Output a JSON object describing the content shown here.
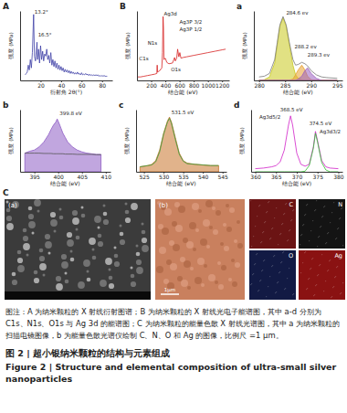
{
  "chart_data": [
    {
      "panel": "A",
      "type": "line",
      "x_label": "衍射角 2θ(°)",
      "y_label": "强度 (MPa)",
      "x": [
        5,
        6,
        7,
        8,
        9,
        10,
        11,
        12,
        13.2,
        14,
        15,
        16.5,
        17,
        18,
        19,
        20,
        21,
        22,
        23,
        24,
        25,
        26,
        27,
        28,
        29,
        30,
        31,
        32,
        33,
        34,
        35,
        36,
        37,
        38,
        39,
        40,
        41,
        42,
        43,
        44,
        45,
        46,
        47,
        48,
        49,
        50,
        51,
        52,
        53,
        54,
        55,
        56,
        57,
        58,
        59,
        60,
        61,
        62,
        63,
        64,
        65,
        66,
        67,
        68,
        69,
        70,
        71,
        72,
        73,
        74,
        75,
        76,
        77,
        78,
        79,
        80,
        81,
        82,
        83,
        84,
        85
      ],
      "xlim": [
        0,
        90
      ],
      "xticks": [
        20,
        40,
        60,
        80
      ],
      "ylim": [
        0,
        100
      ],
      "tick_labels": "x",
      "series": [
        {
          "color": "#3d3fa6",
          "values": [
            8,
            10,
            12,
            22,
            15,
            30,
            18,
            40,
            95,
            35,
            28,
            55,
            30,
            45,
            25,
            50,
            30,
            42,
            28,
            38,
            35,
            45,
            30,
            36,
            25,
            40,
            22,
            30,
            20,
            28,
            18,
            25,
            16,
            22,
            15,
            20,
            14,
            18,
            12,
            16,
            12,
            15,
            11,
            14,
            10,
            13,
            10,
            12,
            9,
            11,
            9,
            12,
            9,
            10,
            8,
            11,
            8,
            9,
            8,
            10,
            8,
            9,
            7,
            9,
            7,
            8,
            7,
            8,
            7,
            8,
            7,
            8,
            6,
            7,
            6,
            7,
            6,
            7,
            6,
            6,
            6
          ]
        }
      ],
      "annotations": [
        {
          "text": "13.2°",
          "x": 14,
          "y": 95
        },
        {
          "text": "16.5°",
          "x": 17.5,
          "y": 62
        }
      ]
    },
    {
      "panel": "B",
      "type": "line",
      "x_label": "结合能 (eV)",
      "y_label": "强度 (MPa)",
      "x": [
        0,
        50,
        100,
        150,
        200,
        250,
        280,
        285,
        290,
        320,
        350,
        360,
        368,
        374,
        380,
        400,
        420,
        450,
        500,
        531,
        540,
        560,
        573,
        590,
        604,
        620,
        650,
        700,
        800,
        900,
        1000,
        1100,
        1200,
        1250
      ],
      "xlim": [
        0,
        1300
      ],
      "xticks": [
        200,
        400,
        600,
        800,
        1000,
        1200
      ],
      "ylim": [
        0,
        100
      ],
      "tick_labels": "x",
      "series": [
        {
          "color": "#d62020",
          "values": [
            5,
            5,
            6,
            7,
            8,
            9,
            10,
            22,
            12,
            14,
            18,
            40,
            92,
            75,
            30,
            32,
            26,
            24,
            25,
            33,
            28,
            32,
            45,
            34,
            40,
            32,
            33,
            34,
            36,
            38,
            40,
            42,
            44,
            45
          ]
        }
      ],
      "annotations": [
        {
          "text": "Ag3d",
          "x": 380,
          "y": 92
        },
        {
          "text": "Ag3P 3/2",
          "x": 600,
          "y": 80
        },
        {
          "text": "Ag3P 1/2",
          "x": 600,
          "y": 70
        },
        {
          "text": "N1s",
          "x": 150,
          "y": 50
        },
        {
          "text": "C1s",
          "x": 30,
          "y": 28
        },
        {
          "text": "O1s",
          "x": 480,
          "y": 12
        }
      ]
    },
    {
      "panel": "a",
      "type": "line",
      "x_label": "结合能 (eV)",
      "y_label": "强度 (MPa)",
      "x": [
        280,
        281,
        282,
        283,
        283.5,
        284,
        284.6,
        285.2,
        285.8,
        286.5,
        287,
        287.5,
        288.2,
        288.8,
        289.3,
        290,
        291,
        292,
        293,
        295
      ],
      "xlim": [
        279,
        296
      ],
      "xticks": [
        280,
        285,
        290,
        295
      ],
      "ylim": [
        0,
        100
      ],
      "tick_labels": "x",
      "series": [
        {
          "type": "area",
          "color": "#c8c81e",
          "values": [
            0,
            1,
            5,
            25,
            52,
            78,
            90,
            78,
            52,
            22,
            8,
            3,
            1,
            0,
            0,
            0,
            0,
            0,
            0,
            0
          ]
        },
        {
          "type": "area",
          "color": "#e8a030",
          "values": [
            0,
            0,
            0,
            0,
            0,
            0,
            0,
            0,
            0,
            2,
            8,
            15,
            22,
            15,
            6,
            1,
            0,
            0,
            0,
            0
          ]
        },
        {
          "type": "area",
          "color": "#9a60c0",
          "values": [
            0,
            0,
            0,
            0,
            0,
            0,
            0,
            0,
            0,
            0,
            0,
            2,
            6,
            14,
            18,
            10,
            3,
            0,
            0,
            0
          ]
        },
        {
          "type": "line",
          "color": "#777777",
          "values": [
            5,
            6,
            10,
            30,
            55,
            80,
            92,
            80,
            55,
            30,
            22,
            23,
            26,
            24,
            21,
            14,
            8,
            5,
            4,
            3
          ]
        }
      ],
      "annotations": [
        {
          "text": "284.6 ev",
          "x": 285.2,
          "y": 94
        },
        {
          "text": "288.2 ev",
          "x": 286.8,
          "y": 45
        },
        {
          "text": "289.3 ev",
          "x": 289.3,
          "y": 33
        }
      ]
    },
    {
      "panel": "b",
      "type": "line",
      "x_label": "结合能 (eV)",
      "y_label": "强度 (MPa)",
      "x": [
        393,
        394,
        395,
        396,
        397,
        398,
        398.5,
        399,
        399.5,
        399.8,
        400.2,
        400.6,
        401,
        401.5,
        402,
        403,
        404,
        405,
        406,
        407,
        408,
        409
      ],
      "xlim": [
        392,
        411
      ],
      "xticks": [
        395,
        400,
        405,
        410
      ],
      "ylim": [
        0,
        100
      ],
      "tick_labels": "x",
      "series": [
        {
          "type": "area",
          "color": "#8e5cc4",
          "values": [
            30,
            33,
            35,
            40,
            48,
            60,
            68,
            75,
            80,
            85,
            78,
            70,
            62,
            55,
            48,
            40,
            35,
            32,
            30,
            29,
            28,
            28
          ]
        },
        {
          "type": "line",
          "color": "#555555",
          "values": [
            30,
            30,
            30,
            30,
            29.5,
            29.5,
            29.5,
            29,
            29,
            29,
            29,
            29,
            29,
            28.5,
            28.5,
            28.5,
            28,
            28,
            28,
            28,
            27.5,
            27.5
          ]
        }
      ],
      "annotations": [
        {
          "text": "399.8 eV",
          "x": 400.3,
          "y": 89
        }
      ]
    },
    {
      "panel": "c",
      "type": "line",
      "x_label": "结合能 (eV)",
      "y_label": "强度 (MPa)",
      "x": [
        524,
        526,
        527,
        528,
        529,
        530,
        531,
        531.5,
        532,
        533,
        534,
        535,
        536,
        538,
        540,
        542,
        544
      ],
      "xlim": [
        523,
        546
      ],
      "xticks": [
        525,
        530,
        535,
        540,
        545
      ],
      "ylim": [
        0,
        100
      ],
      "tick_labels": "x",
      "series": [
        {
          "type": "area",
          "color": "#c8742c",
          "values": [
            8,
            10,
            12,
            18,
            35,
            62,
            82,
            88,
            80,
            55,
            30,
            18,
            14,
            12,
            11,
            10,
            10
          ]
        },
        {
          "type": "line",
          "color": "#3a9a3a",
          "values": [
            8,
            10,
            11,
            16,
            32,
            60,
            80,
            86,
            78,
            52,
            28,
            17,
            13,
            12,
            11,
            10,
            10
          ]
        }
      ],
      "annotations": [
        {
          "text": "531.5 eV",
          "x": 532,
          "y": 91
        }
      ]
    },
    {
      "panel": "d",
      "type": "line",
      "x_label": "结合能 (eV)",
      "y_label": "强度 (MPa)",
      "x": [
        360,
        362,
        364,
        365,
        366,
        367,
        368,
        368.5,
        369,
        370,
        371,
        372,
        373,
        374,
        374.5,
        375,
        376,
        377,
        378,
        380
      ],
      "xlim": [
        359,
        381
      ],
      "xticks": [
        360,
        365,
        370,
        375,
        380
      ],
      "ylim": [
        0,
        100
      ],
      "tick_labels": "x",
      "series": [
        {
          "type": "line",
          "color": "#d020c8",
          "values": [
            5,
            6,
            8,
            10,
            16,
            35,
            75,
            90,
            75,
            30,
            12,
            9,
            12,
            40,
            65,
            50,
            18,
            8,
            6,
            5
          ]
        },
        {
          "type": "line",
          "color": "#30c030",
          "values": [
            0,
            0,
            0,
            0,
            0,
            0,
            0,
            0,
            0,
            0,
            0,
            1,
            10,
            38,
            62,
            48,
            15,
            3,
            0,
            0
          ]
        }
      ],
      "annotations": [
        {
          "text": "368.5 eV",
          "x": 366,
          "y": 96
        },
        {
          "text": "Ag3d5/2",
          "x": 361,
          "y": 84
        },
        {
          "text": "374.5 eV",
          "x": 373,
          "y": 73
        },
        {
          "text": "Ag3d3/2",
          "x": 375.5,
          "y": 60
        }
      ]
    }
  ],
  "images": {
    "panel": "C",
    "sem": {
      "label": "(a)"
    },
    "eds": {
      "label": "(b)",
      "scale_bar": "1μm"
    },
    "maps": [
      {
        "element": "C",
        "color": "#6b1414"
      },
      {
        "element": "N",
        "color": "#141414"
      },
      {
        "element": "O",
        "color": "#121a44"
      },
      {
        "element": "Ag",
        "color": "#8a1212"
      }
    ]
  },
  "caption": {
    "note": "图注：A 为纳米颗粒的 X 射线衍射图谱；B 为纳米颗粒的 X 射线光电子能谱图，其中 a-d 分别为 C1s、N1s、O1s 与 Ag 3d 的能谱图；C 为纳米颗粒的能量色散 X 射线光谱图，其中 a 为纳米颗粒的扫描电镜图像，b 为能量色散光谱仪绘制 C、N、O 和 Ag 的图像，比例尺 =1 μm。",
    "title_zh": "图 2 | 超小银纳米颗粒的结构与元素组成",
    "title_en": "Figure 2 | Structure and elemental composition of ultra-small silver nanoparticles"
  }
}
